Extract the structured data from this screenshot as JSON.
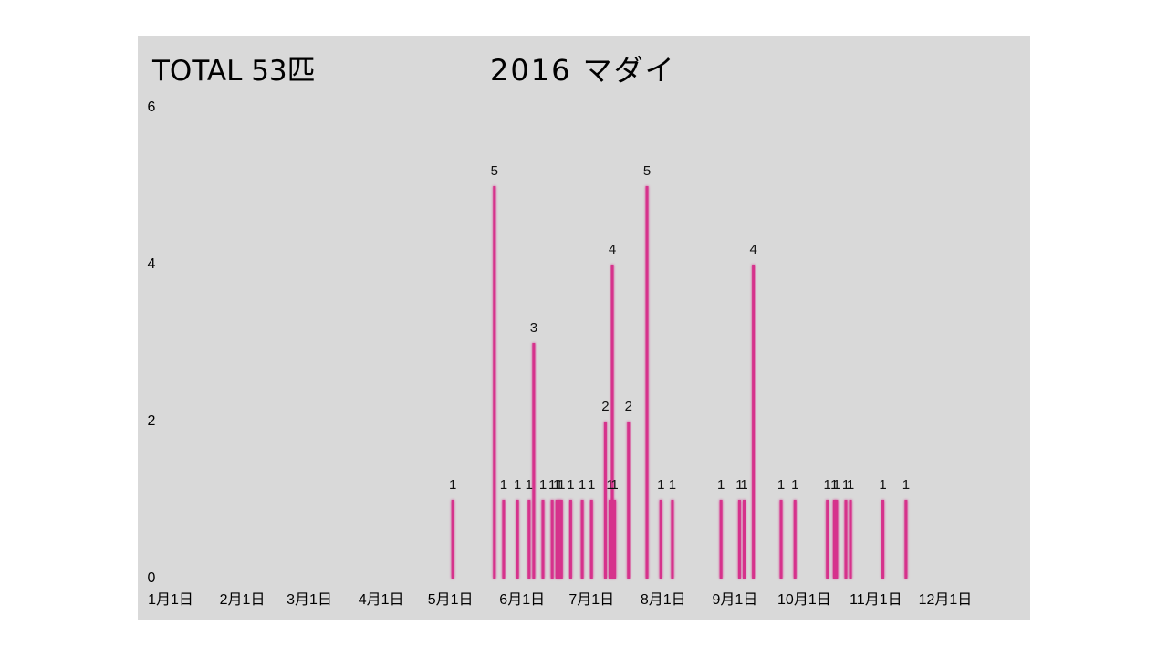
{
  "colors": {
    "page_background": "#ffffff",
    "panel_background": "#d9d9d9",
    "bar": "#d6338c",
    "text": "#000000"
  },
  "chart_data": {
    "type": "bar",
    "title": "2016 マダイ",
    "total_label": "TOTAL 53匹",
    "x_type": "date",
    "xlim": [
      "2016-01-01",
      "2016-12-31"
    ],
    "ylim": [
      0,
      6
    ],
    "yticks": [
      0,
      2,
      4,
      6
    ],
    "xticks": [
      {
        "value": "2016-01-01",
        "label": "1月1日"
      },
      {
        "value": "2016-02-01",
        "label": "2月1日"
      },
      {
        "value": "2016-03-01",
        "label": "3月1日"
      },
      {
        "value": "2016-04-01",
        "label": "4月1日"
      },
      {
        "value": "2016-05-01",
        "label": "5月1日"
      },
      {
        "value": "2016-06-01",
        "label": "6月1日"
      },
      {
        "value": "2016-07-01",
        "label": "7月1日"
      },
      {
        "value": "2016-08-01",
        "label": "8月1日"
      },
      {
        "value": "2016-09-01",
        "label": "9月1日"
      },
      {
        "value": "2016-10-01",
        "label": "10月1日"
      },
      {
        "value": "2016-11-01",
        "label": "11月1日"
      },
      {
        "value": "2016-12-01",
        "label": "12月1日"
      }
    ],
    "grid": false,
    "legend": "none",
    "data_labels": true,
    "x": [
      "2016-05-02",
      "2016-05-20",
      "2016-05-24",
      "2016-05-30",
      "2016-06-04",
      "2016-06-06",
      "2016-06-10",
      "2016-06-14",
      "2016-06-16",
      "2016-06-17",
      "2016-06-18",
      "2016-06-22",
      "2016-06-27",
      "2016-07-01",
      "2016-07-07",
      "2016-07-09",
      "2016-07-10",
      "2016-07-11",
      "2016-07-17",
      "2016-07-25",
      "2016-07-31",
      "2016-08-05",
      "2016-08-26",
      "2016-09-03",
      "2016-09-05",
      "2016-09-09",
      "2016-09-21",
      "2016-09-27",
      "2016-10-11",
      "2016-10-14",
      "2016-10-15",
      "2016-10-19",
      "2016-10-21",
      "2016-11-04",
      "2016-11-14"
    ],
    "values": [
      1,
      5,
      1,
      1,
      1,
      3,
      1,
      1,
      1,
      1,
      1,
      1,
      1,
      1,
      2,
      1,
      4,
      1,
      2,
      5,
      1,
      1,
      1,
      1,
      1,
      4,
      1,
      1,
      1,
      1,
      1,
      1,
      1,
      1,
      1
    ]
  }
}
